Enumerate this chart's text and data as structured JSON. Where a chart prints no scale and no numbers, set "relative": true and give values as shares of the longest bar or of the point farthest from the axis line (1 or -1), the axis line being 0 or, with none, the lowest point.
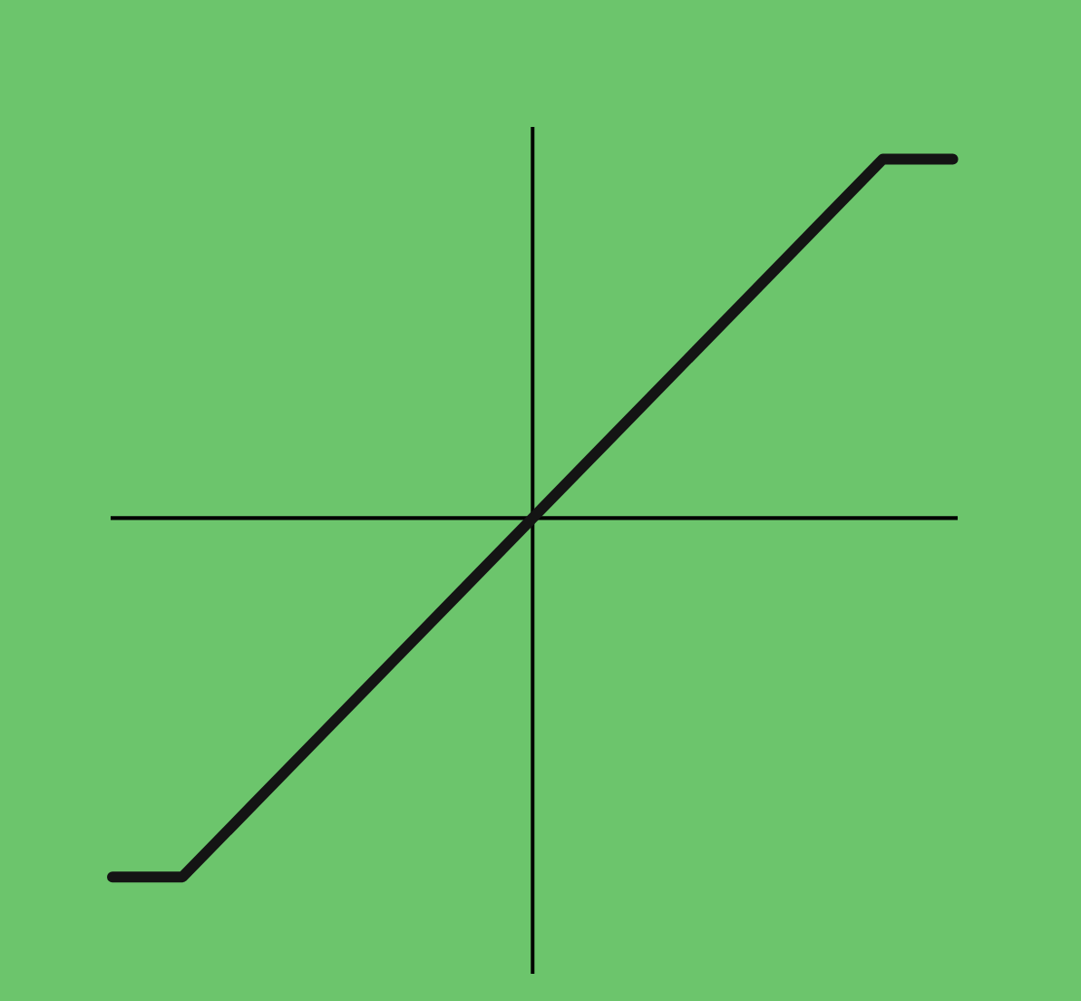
{
  "chart_data": {
    "type": "line",
    "relative": true,
    "color": "#141414",
    "categories": [
      null,
      null,
      null,
      null,
      null,
      null,
      null,
      null,
      null,
      null,
      null,
      null,
      null
    ],
    "values": [
      -1,
      -1,
      -0.8,
      -0.6,
      -0.4,
      -0.2,
      0,
      0.2,
      0.4,
      0.6,
      0.8,
      1,
      1
    ]
  }
}
